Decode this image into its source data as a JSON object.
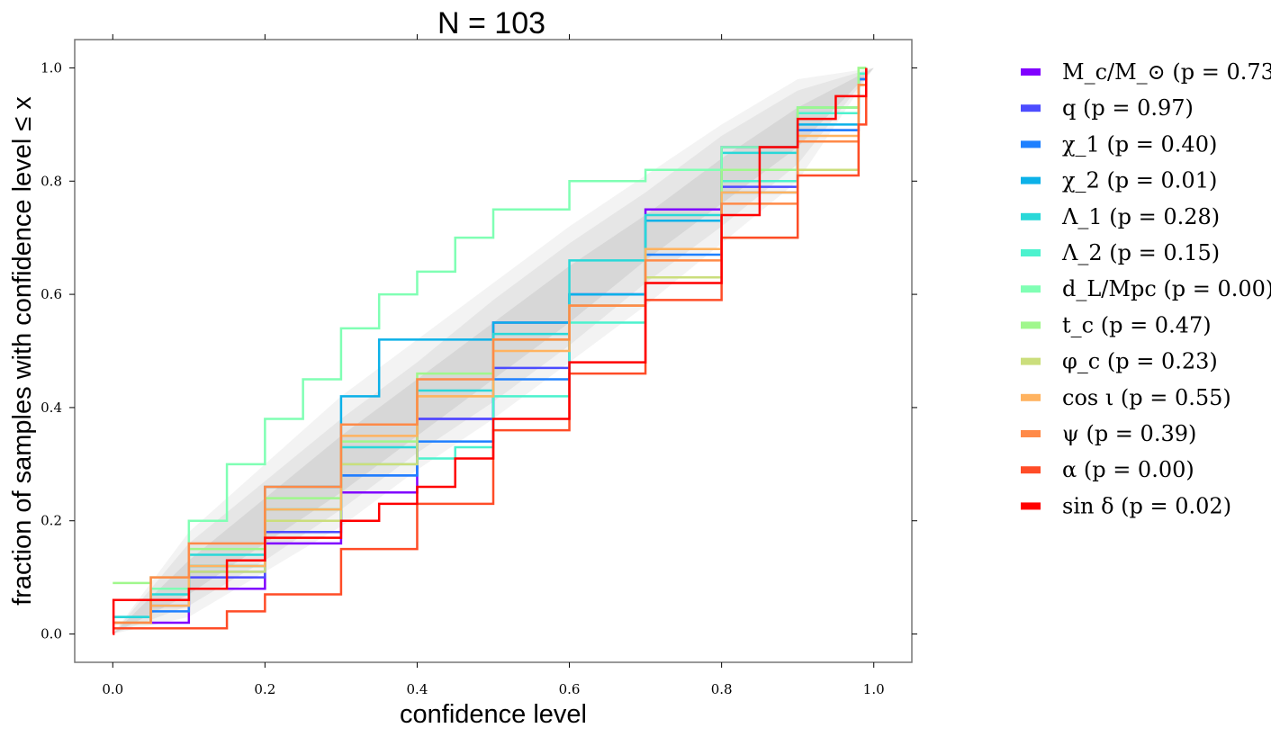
{
  "chart_data": {
    "type": "line",
    "title": "N = 103",
    "xlabel": "confidence level",
    "ylabel": "fraction of samples with confidence level ≤ x",
    "xlim": [
      -0.05,
      1.05
    ],
    "ylim": [
      -0.05,
      1.05
    ],
    "xticks": [
      "0.0",
      "0.2",
      "0.4",
      "0.6",
      "0.8",
      "1.0"
    ],
    "yticks": [
      "0.0",
      "0.2",
      "0.4",
      "0.6",
      "0.8",
      "1.0"
    ],
    "grid": false,
    "legend_position": "right",
    "confidence_bands": {
      "x": [
        0,
        0.1,
        0.2,
        0.3,
        0.4,
        0.5,
        0.6,
        0.7,
        0.8,
        0.9,
        1.0
      ],
      "outer_low": [
        0,
        0.03,
        0.11,
        0.19,
        0.29,
        0.38,
        0.48,
        0.58,
        0.69,
        0.8,
        1.0
      ],
      "outer_high": [
        0,
        0.18,
        0.3,
        0.42,
        0.52,
        0.62,
        0.72,
        0.81,
        0.9,
        0.98,
        1.0
      ],
      "mid_low": [
        0,
        0.05,
        0.13,
        0.22,
        0.32,
        0.41,
        0.51,
        0.62,
        0.72,
        0.83,
        1.0
      ],
      "mid_high": [
        0,
        0.16,
        0.27,
        0.38,
        0.48,
        0.59,
        0.69,
        0.78,
        0.88,
        0.96,
        1.0
      ],
      "inner_low": [
        0,
        0.07,
        0.16,
        0.25,
        0.35,
        0.45,
        0.55,
        0.66,
        0.76,
        0.86,
        1.0
      ],
      "inner_high": [
        0,
        0.13,
        0.24,
        0.35,
        0.45,
        0.55,
        0.65,
        0.74,
        0.84,
        0.93,
        1.0
      ]
    },
    "series": [
      {
        "name": "M_c/M_⊙ (p = 0.73)",
        "color": "#8000ff",
        "x": [
          0,
          0.05,
          0.1,
          0.2,
          0.3,
          0.4,
          0.5,
          0.6,
          0.7,
          0.8,
          0.9,
          0.98,
          0.99
        ],
        "y": [
          0.02,
          0.02,
          0.08,
          0.16,
          0.25,
          0.38,
          0.55,
          0.6,
          0.75,
          0.86,
          0.92,
          0.99,
          1.0
        ]
      },
      {
        "name": "q (p = 0.97)",
        "color": "#4c4cff",
        "x": [
          0,
          0.05,
          0.1,
          0.2,
          0.3,
          0.4,
          0.5,
          0.6,
          0.7,
          0.8,
          0.9,
          0.98,
          0.99
        ],
        "y": [
          0.02,
          0.05,
          0.1,
          0.18,
          0.28,
          0.38,
          0.47,
          0.58,
          0.68,
          0.79,
          0.89,
          0.98,
          1.0
        ]
      },
      {
        "name": "χ_1 (p = 0.40)",
        "color": "#1e80ff",
        "x": [
          0,
          0.05,
          0.1,
          0.2,
          0.3,
          0.4,
          0.5,
          0.6,
          0.7,
          0.8,
          0.9,
          0.98,
          0.99
        ],
        "y": [
          0.02,
          0.04,
          0.11,
          0.2,
          0.28,
          0.34,
          0.45,
          0.6,
          0.67,
          0.78,
          0.89,
          0.98,
          1.0
        ]
      },
      {
        "name": "χ_2 (p = 0.01)",
        "color": "#0cb1e8",
        "x": [
          0,
          0.05,
          0.1,
          0.2,
          0.3,
          0.35,
          0.4,
          0.5,
          0.6,
          0.7,
          0.8,
          0.9,
          0.98,
          0.99
        ],
        "y": [
          0.03,
          0.06,
          0.12,
          0.26,
          0.42,
          0.52,
          0.52,
          0.55,
          0.6,
          0.73,
          0.8,
          0.9,
          0.99,
          1.0
        ]
      },
      {
        "name": "Λ_1 (p = 0.28)",
        "color": "#29d8d8",
        "x": [
          0,
          0.05,
          0.1,
          0.2,
          0.3,
          0.4,
          0.5,
          0.6,
          0.7,
          0.8,
          0.9,
          0.98,
          0.99
        ],
        "y": [
          0.03,
          0.07,
          0.14,
          0.22,
          0.33,
          0.43,
          0.53,
          0.66,
          0.74,
          0.85,
          0.93,
          0.99,
          1.0
        ]
      },
      {
        "name": "Λ_2 (p = 0.15)",
        "color": "#4cf2ce",
        "x": [
          0,
          0.05,
          0.1,
          0.2,
          0.3,
          0.4,
          0.45,
          0.5,
          0.6,
          0.7,
          0.8,
          0.9,
          0.98,
          0.99
        ],
        "y": [
          0.02,
          0.06,
          0.12,
          0.22,
          0.3,
          0.31,
          0.33,
          0.42,
          0.55,
          0.68,
          0.8,
          0.92,
          0.99,
          1.0
        ]
      },
      {
        "name": "d_L/Mpc (p = 0.00)",
        "color": "#80ffb4",
        "x": [
          0,
          0.05,
          0.1,
          0.15,
          0.2,
          0.25,
          0.3,
          0.35,
          0.4,
          0.45,
          0.5,
          0.6,
          0.7,
          0.8,
          0.9,
          0.98,
          0.99
        ],
        "y": [
          0.02,
          0.08,
          0.2,
          0.3,
          0.38,
          0.45,
          0.54,
          0.6,
          0.64,
          0.7,
          0.75,
          0.8,
          0.82,
          0.86,
          0.93,
          1.0,
          1.0
        ]
      },
      {
        "name": "t_c (p = 0.47)",
        "color": "#a0f78c",
        "x": [
          0,
          0.05,
          0.1,
          0.2,
          0.3,
          0.4,
          0.5,
          0.6,
          0.7,
          0.8,
          0.9,
          0.98,
          0.99
        ],
        "y": [
          0.09,
          0.1,
          0.15,
          0.24,
          0.34,
          0.46,
          0.52,
          0.58,
          0.68,
          0.82,
          0.93,
          1.0,
          1.0
        ]
      },
      {
        "name": "φ_c (p = 0.23)",
        "color": "#cbde7c",
        "x": [
          0,
          0.05,
          0.1,
          0.2,
          0.3,
          0.4,
          0.5,
          0.6,
          0.7,
          0.8,
          0.9,
          0.98,
          0.99
        ],
        "y": [
          0.02,
          0.06,
          0.11,
          0.2,
          0.3,
          0.42,
          0.52,
          0.58,
          0.63,
          0.7,
          0.82,
          0.95,
          1.0
        ]
      },
      {
        "name": "cos ι (p = 0.55)",
        "color": "#ffb360",
        "x": [
          0,
          0.05,
          0.1,
          0.2,
          0.3,
          0.4,
          0.5,
          0.6,
          0.7,
          0.8,
          0.9,
          0.98,
          0.99
        ],
        "y": [
          0.02,
          0.05,
          0.12,
          0.22,
          0.35,
          0.42,
          0.5,
          0.58,
          0.68,
          0.78,
          0.88,
          0.97,
          1.0
        ]
      },
      {
        "name": "ψ (p = 0.39)",
        "color": "#ff8a48",
        "x": [
          0,
          0.05,
          0.1,
          0.2,
          0.3,
          0.4,
          0.5,
          0.6,
          0.7,
          0.8,
          0.9,
          0.98,
          0.99
        ],
        "y": [
          0.02,
          0.1,
          0.16,
          0.26,
          0.37,
          0.45,
          0.52,
          0.58,
          0.66,
          0.76,
          0.87,
          0.97,
          1.0
        ]
      },
      {
        "name": "α (p = 0.00)",
        "color": "#ff4c27",
        "x": [
          0,
          0.05,
          0.1,
          0.12,
          0.15,
          0.2,
          0.3,
          0.4,
          0.5,
          0.6,
          0.7,
          0.8,
          0.9,
          0.98,
          0.99
        ],
        "y": [
          0.01,
          0.01,
          0.01,
          0.01,
          0.04,
          0.07,
          0.15,
          0.23,
          0.36,
          0.46,
          0.59,
          0.7,
          0.81,
          0.9,
          1.0
        ]
      },
      {
        "name": "sin δ (p = 0.02)",
        "color": "#ff0000",
        "x": [
          0,
          0.001,
          0.05,
          0.1,
          0.15,
          0.2,
          0.25,
          0.3,
          0.35,
          0.4,
          0.45,
          0.5,
          0.6,
          0.7,
          0.8,
          0.85,
          0.9,
          0.95,
          0.98,
          0.99
        ],
        "y": [
          0.0,
          0.06,
          0.06,
          0.08,
          0.13,
          0.17,
          0.17,
          0.2,
          0.23,
          0.26,
          0.31,
          0.38,
          0.48,
          0.62,
          0.74,
          0.86,
          0.91,
          0.95,
          0.95,
          1.0
        ]
      }
    ]
  }
}
